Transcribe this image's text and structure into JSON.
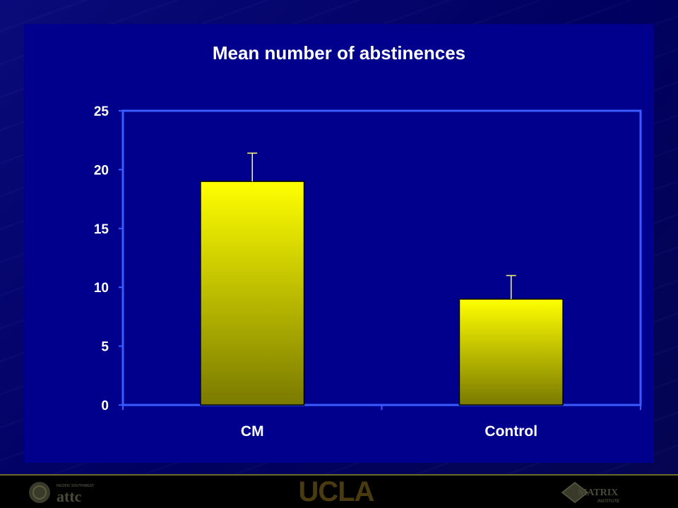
{
  "chart_data": {
    "type": "bar",
    "title": "Mean number of abstinences",
    "xlabel": "",
    "ylabel": "",
    "categories": [
      "CM",
      "Control"
    ],
    "values": [
      19,
      9
    ],
    "error_bars": [
      2.4,
      2.0
    ],
    "ylim": [
      0,
      25
    ],
    "yticks": [
      "0",
      "5",
      "10",
      "15",
      "20",
      "25"
    ],
    "grid": false,
    "legend": "none",
    "colors": {
      "bar_top": "#ffff00",
      "bar_bottom": "#7a7a00",
      "axis": "#3a5cff",
      "text": "#ffffff",
      "error_bar": "#ffff66"
    }
  },
  "footer": {
    "logo_left_text": "attc",
    "logo_left_small": "PACIFIC SOUTHWEST",
    "logo_center_text": "UCLA",
    "logo_right_text": "MATRIX",
    "logo_right_small": "INSTITUTE"
  }
}
